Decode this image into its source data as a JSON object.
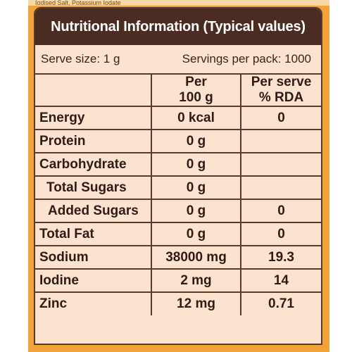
{
  "top_strip_text": "Iodised Salt, Potassium Iodate",
  "title": "Nutritional Information (Typical values)",
  "serve_size": "Serve size: 1 g",
  "servings_per_pack": "Servings per pack: 1000",
  "headers": {
    "per_100g_line1": "Per",
    "per_100g_line2": "100 g",
    "rda_line1": "Per serve",
    "rda_line2": "% RDA"
  },
  "rows": [
    {
      "name": "Energy",
      "per100": "0 kcal",
      "rda": "0"
    },
    {
      "name": "Protein",
      "per100": "0 g",
      "rda": ""
    },
    {
      "name": "Carbohydrate",
      "per100": "0 g",
      "rda": ""
    },
    {
      "name": "Total Sugars",
      "per100": "0 g",
      "rda": ""
    },
    {
      "name": "Added Sugars",
      "per100": "0 g",
      "rda": "0"
    },
    {
      "name": "Total Fat",
      "per100": "0 g",
      "rda": "0"
    },
    {
      "name": "Sodium",
      "per100": "38000 mg",
      "rda": "19.3"
    },
    {
      "name": "Iodine",
      "per100": "2 mg",
      "rda": "14"
    },
    {
      "name": "Zinc",
      "per100": "12 mg",
      "rda": "0.71"
    }
  ]
}
